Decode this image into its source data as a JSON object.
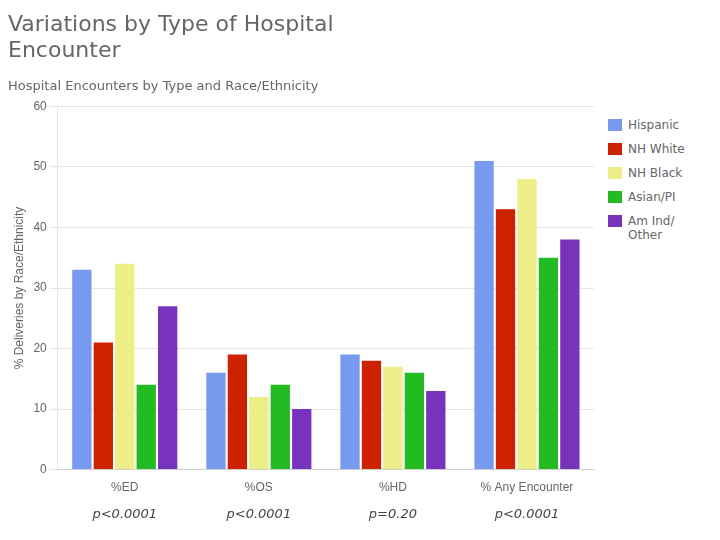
{
  "chart_data": {
    "type": "bar",
    "title": "Variations by Type of Hospital\nEncounter",
    "subtitle": "Hospital Encounters by Type and Race/Ethnicity",
    "ylabel": "% Deliveries by Race/Ethnicity",
    "categories": [
      "%ED",
      "%OS",
      "%HD",
      "% Any Encounter"
    ],
    "series": [
      {
        "name": "Hispanic",
        "color": "#7799EE",
        "values": [
          33,
          16,
          19,
          51
        ]
      },
      {
        "name": "NH White",
        "color": "#CC2200",
        "values": [
          21,
          19,
          18,
          43
        ]
      },
      {
        "name": "NH Black",
        "color": "#EEEE88",
        "values": [
          34,
          12,
          17,
          48
        ]
      },
      {
        "name": "Asian/PI",
        "color": "#22BB22",
        "values": [
          14,
          14,
          16,
          35
        ]
      },
      {
        "name": "Am Ind/\nOther",
        "color": "#7733BB",
        "values": [
          27,
          10,
          13,
          38
        ]
      }
    ],
    "annotations": [
      "p<0.0001",
      "p<0.0001",
      "p=0.20",
      "p<0.0001"
    ],
    "ylim": [
      0,
      60
    ],
    "yticks": [
      0,
      10,
      20,
      30,
      40,
      50,
      60
    ],
    "grid": true,
    "legend": "right"
  }
}
